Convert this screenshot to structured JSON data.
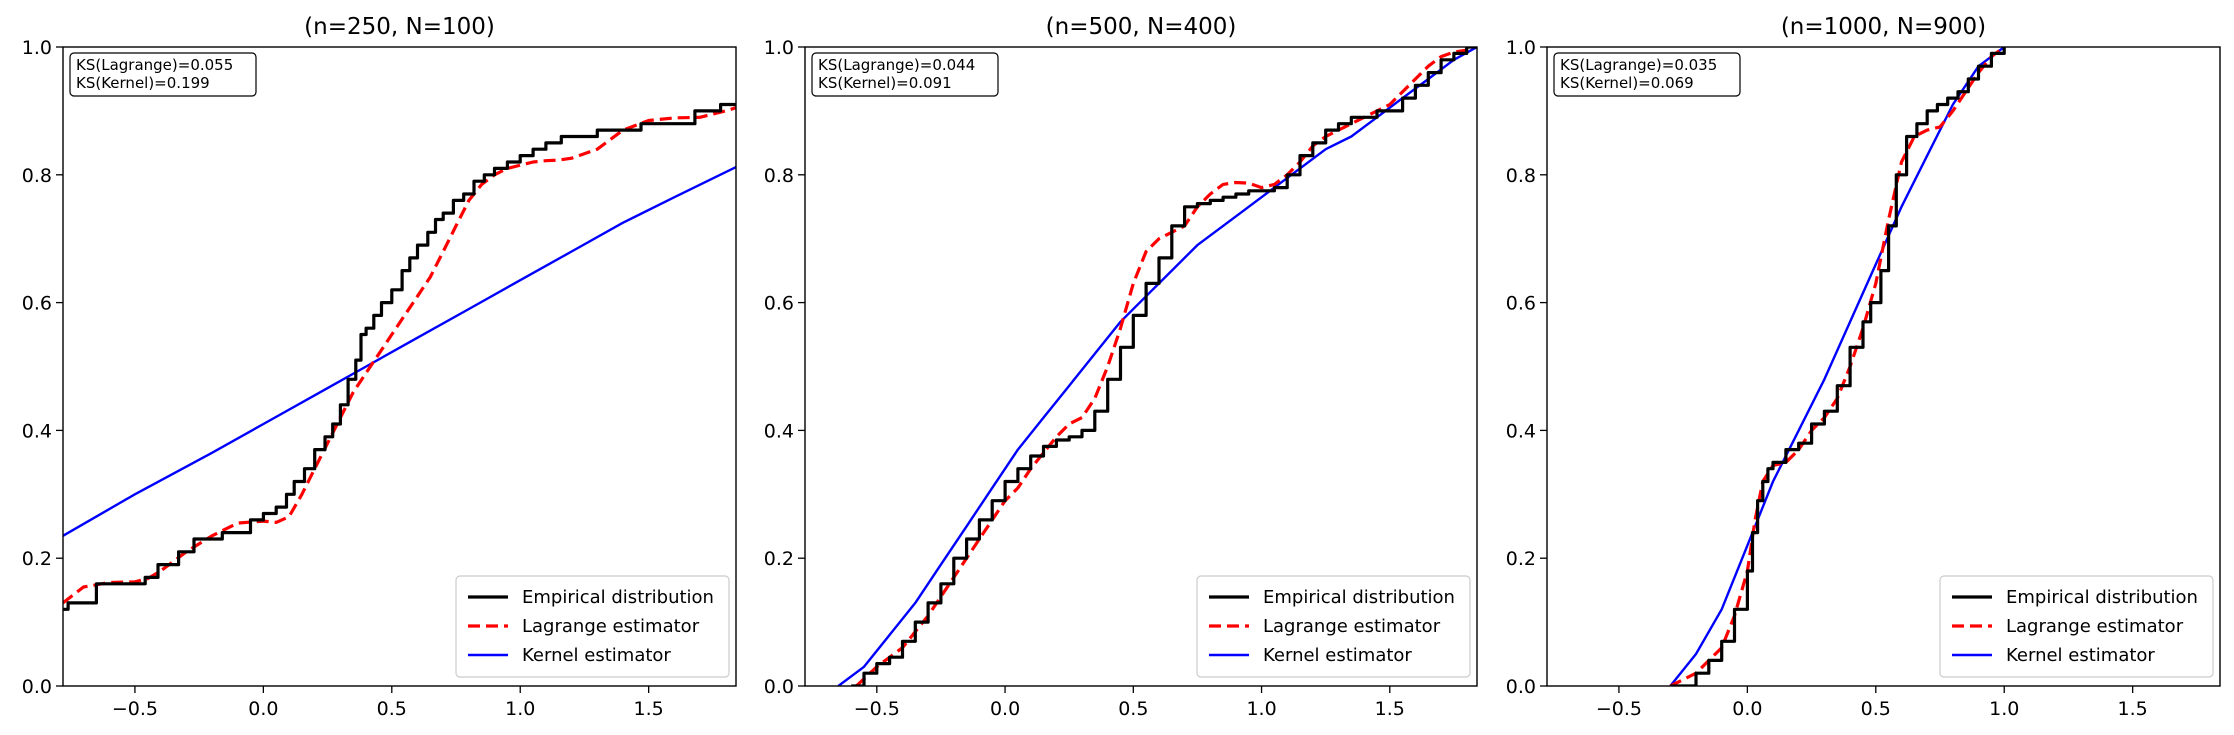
{
  "chart_data": [
    {
      "type": "line",
      "title": "(n=250, N=100)",
      "xlabel": "",
      "ylabel": "",
      "xlim": [
        -0.78,
        1.84
      ],
      "ylim": [
        0.0,
        1.0
      ],
      "xticks": [
        -0.5,
        0.0,
        0.5,
        1.0,
        1.5
      ],
      "xtick_labels": [
        "−0.5",
        "0.0",
        "0.5",
        "1.0",
        "1.5"
      ],
      "yticks": [
        0.0,
        0.2,
        0.4,
        0.6,
        0.8,
        1.0
      ],
      "ytick_labels": [
        "0.0",
        "0.2",
        "0.4",
        "0.6",
        "0.8",
        "1.0"
      ],
      "annotation": [
        "KS(Lagrange)=0.055",
        "KS(Kernel)=0.199"
      ],
      "legend_position": "lower-right",
      "series": [
        {
          "name": "Empirical distribution",
          "color": "#000000",
          "style": "step",
          "x": [
            -0.78,
            -0.76,
            -0.65,
            -0.54,
            -0.46,
            -0.41,
            -0.33,
            -0.27,
            -0.16,
            -0.05,
            0.0,
            0.05,
            0.09,
            0.12,
            0.16,
            0.2,
            0.24,
            0.27,
            0.3,
            0.33,
            0.36,
            0.38,
            0.4,
            0.43,
            0.46,
            0.5,
            0.54,
            0.57,
            0.6,
            0.64,
            0.67,
            0.7,
            0.74,
            0.78,
            0.82,
            0.86,
            0.9,
            0.95,
            1.0,
            1.05,
            1.1,
            1.16,
            1.22,
            1.3,
            1.38,
            1.47,
            1.58,
            1.68,
            1.78,
            1.84
          ],
          "y": [
            0.12,
            0.13,
            0.16,
            0.16,
            0.17,
            0.19,
            0.21,
            0.23,
            0.24,
            0.26,
            0.27,
            0.28,
            0.3,
            0.32,
            0.34,
            0.37,
            0.39,
            0.41,
            0.44,
            0.48,
            0.51,
            0.55,
            0.56,
            0.58,
            0.6,
            0.62,
            0.65,
            0.67,
            0.69,
            0.71,
            0.73,
            0.74,
            0.76,
            0.77,
            0.79,
            0.8,
            0.81,
            0.82,
            0.83,
            0.84,
            0.85,
            0.86,
            0.86,
            0.87,
            0.87,
            0.88,
            0.88,
            0.9,
            0.91,
            0.91
          ]
        },
        {
          "name": "Lagrange estimator",
          "color": "#ff0000",
          "style": "dashed",
          "x": [
            -0.78,
            -0.7,
            -0.6,
            -0.5,
            -0.45,
            -0.4,
            -0.3,
            -0.2,
            -0.1,
            0.0,
            0.05,
            0.1,
            0.15,
            0.2,
            0.25,
            0.3,
            0.35,
            0.4,
            0.45,
            0.5,
            0.55,
            0.6,
            0.65,
            0.7,
            0.75,
            0.8,
            0.85,
            0.9,
            0.95,
            1.0,
            1.05,
            1.1,
            1.15,
            1.2,
            1.3,
            1.4,
            1.5,
            1.6,
            1.7,
            1.8,
            1.84
          ],
          "y": [
            0.13,
            0.155,
            0.162,
            0.163,
            0.168,
            0.18,
            0.21,
            0.235,
            0.255,
            0.258,
            0.256,
            0.265,
            0.3,
            0.34,
            0.38,
            0.42,
            0.46,
            0.49,
            0.52,
            0.55,
            0.58,
            0.61,
            0.64,
            0.68,
            0.72,
            0.76,
            0.785,
            0.8,
            0.81,
            0.815,
            0.82,
            0.822,
            0.823,
            0.826,
            0.84,
            0.87,
            0.885,
            0.889,
            0.89,
            0.9,
            0.905
          ]
        },
        {
          "name": "Kernel estimator",
          "color": "#0000ff",
          "style": "solid",
          "x": [
            -0.78,
            -0.5,
            -0.2,
            0.0,
            0.2,
            0.4,
            0.6,
            0.8,
            1.0,
            1.2,
            1.4,
            1.6,
            1.84
          ],
          "y": [
            0.235,
            0.3,
            0.365,
            0.41,
            0.455,
            0.5,
            0.545,
            0.59,
            0.635,
            0.68,
            0.725,
            0.765,
            0.812
          ]
        }
      ]
    },
    {
      "type": "line",
      "title": "(n=500, N=400)",
      "xlabel": "",
      "ylabel": "",
      "xlim": [
        -0.78,
        1.84
      ],
      "ylim": [
        0.0,
        1.0
      ],
      "xticks": [
        -0.5,
        0.0,
        0.5,
        1.0,
        1.5
      ],
      "xtick_labels": [
        "−0.5",
        "0.0",
        "0.5",
        "1.0",
        "1.5"
      ],
      "yticks": [
        0.0,
        0.2,
        0.4,
        0.6,
        0.8,
        1.0
      ],
      "ytick_labels": [
        "0.0",
        "0.2",
        "0.4",
        "0.6",
        "0.8",
        "1.0"
      ],
      "annotation": [
        "KS(Lagrange)=0.044",
        "KS(Kernel)=0.091"
      ],
      "legend_position": "lower-right",
      "series": [
        {
          "name": "Empirical distribution",
          "color": "#000000",
          "style": "step",
          "x": [
            -0.6,
            -0.55,
            -0.5,
            -0.45,
            -0.4,
            -0.35,
            -0.3,
            -0.25,
            -0.2,
            -0.15,
            -0.1,
            -0.05,
            0.0,
            0.05,
            0.1,
            0.15,
            0.2,
            0.25,
            0.3,
            0.35,
            0.4,
            0.45,
            0.5,
            0.55,
            0.6,
            0.65,
            0.7,
            0.75,
            0.8,
            0.85,
            0.9,
            0.95,
            1.0,
            1.05,
            1.1,
            1.15,
            1.2,
            1.25,
            1.3,
            1.35,
            1.4,
            1.45,
            1.5,
            1.55,
            1.6,
            1.65,
            1.7,
            1.75,
            1.8,
            1.84
          ],
          "y": [
            0.0,
            0.02,
            0.035,
            0.045,
            0.07,
            0.1,
            0.13,
            0.16,
            0.2,
            0.23,
            0.26,
            0.29,
            0.32,
            0.34,
            0.36,
            0.375,
            0.385,
            0.39,
            0.4,
            0.43,
            0.48,
            0.53,
            0.58,
            0.63,
            0.67,
            0.72,
            0.75,
            0.755,
            0.76,
            0.765,
            0.77,
            0.775,
            0.775,
            0.78,
            0.8,
            0.83,
            0.85,
            0.87,
            0.88,
            0.89,
            0.89,
            0.9,
            0.9,
            0.92,
            0.94,
            0.96,
            0.98,
            0.99,
            1.0,
            1.0
          ]
        },
        {
          "name": "Lagrange estimator",
          "color": "#ff0000",
          "style": "dashed",
          "x": [
            -0.58,
            -0.5,
            -0.4,
            -0.3,
            -0.2,
            -0.1,
            0.0,
            0.05,
            0.1,
            0.2,
            0.25,
            0.3,
            0.35,
            0.4,
            0.45,
            0.5,
            0.55,
            0.6,
            0.65,
            0.7,
            0.75,
            0.8,
            0.85,
            0.9,
            0.95,
            1.0,
            1.05,
            1.1,
            1.15,
            1.2,
            1.25,
            1.3,
            1.35,
            1.4,
            1.45,
            1.5,
            1.55,
            1.6,
            1.65,
            1.7,
            1.75,
            1.8
          ],
          "y": [
            0.0,
            0.03,
            0.06,
            0.11,
            0.17,
            0.23,
            0.29,
            0.31,
            0.34,
            0.39,
            0.41,
            0.42,
            0.45,
            0.5,
            0.56,
            0.63,
            0.68,
            0.7,
            0.71,
            0.72,
            0.75,
            0.77,
            0.785,
            0.788,
            0.787,
            0.78,
            0.785,
            0.8,
            0.82,
            0.845,
            0.86,
            0.87,
            0.88,
            0.89,
            0.9,
            0.91,
            0.93,
            0.95,
            0.97,
            0.985,
            0.992,
            0.995
          ]
        },
        {
          "name": "Kernel estimator",
          "color": "#0000ff",
          "style": "solid",
          "x": [
            -0.65,
            -0.55,
            -0.45,
            -0.35,
            -0.25,
            -0.15,
            -0.05,
            0.05,
            0.15,
            0.25,
            0.35,
            0.45,
            0.55,
            0.65,
            0.75,
            0.85,
            0.95,
            1.05,
            1.15,
            1.25,
            1.35,
            1.45,
            1.55,
            1.65,
            1.75,
            1.84
          ],
          "y": [
            0.0,
            0.03,
            0.08,
            0.13,
            0.19,
            0.25,
            0.31,
            0.37,
            0.42,
            0.47,
            0.52,
            0.57,
            0.61,
            0.65,
            0.69,
            0.72,
            0.75,
            0.78,
            0.81,
            0.84,
            0.86,
            0.89,
            0.92,
            0.95,
            0.98,
            1.0
          ]
        }
      ]
    },
    {
      "type": "line",
      "title": "(n=1000, N=900)",
      "xlabel": "",
      "ylabel": "",
      "xlim": [
        -0.78,
        1.84
      ],
      "ylim": [
        0.0,
        1.0
      ],
      "xticks": [
        -0.5,
        0.0,
        0.5,
        1.0,
        1.5
      ],
      "xtick_labels": [
        "−0.5",
        "0.0",
        "0.5",
        "1.0",
        "1.5"
      ],
      "yticks": [
        0.0,
        0.2,
        0.4,
        0.6,
        0.8,
        1.0
      ],
      "ytick_labels": [
        "0.0",
        "0.2",
        "0.4",
        "0.6",
        "0.8",
        "1.0"
      ],
      "annotation": [
        "KS(Lagrange)=0.035",
        "KS(Kernel)=0.069"
      ],
      "legend_position": "lower-right",
      "series": [
        {
          "name": "Empirical distribution",
          "color": "#000000",
          "style": "step",
          "x": [
            -0.3,
            -0.2,
            -0.15,
            -0.1,
            -0.05,
            0.0,
            0.02,
            0.04,
            0.06,
            0.08,
            0.1,
            0.15,
            0.2,
            0.25,
            0.3,
            0.35,
            0.4,
            0.45,
            0.48,
            0.52,
            0.55,
            0.58,
            0.62,
            0.66,
            0.7,
            0.74,
            0.78,
            0.82,
            0.86,
            0.9,
            0.95,
            1.0
          ],
          "y": [
            0.0,
            0.02,
            0.04,
            0.07,
            0.12,
            0.18,
            0.24,
            0.29,
            0.32,
            0.34,
            0.35,
            0.37,
            0.38,
            0.41,
            0.43,
            0.47,
            0.53,
            0.57,
            0.6,
            0.65,
            0.72,
            0.8,
            0.86,
            0.88,
            0.9,
            0.91,
            0.92,
            0.93,
            0.95,
            0.97,
            0.99,
            1.0
          ]
        },
        {
          "name": "Lagrange estimator",
          "color": "#ff0000",
          "style": "dashed",
          "x": [
            -0.3,
            -0.2,
            -0.1,
            -0.05,
            0.0,
            0.03,
            0.06,
            0.1,
            0.15,
            0.2,
            0.25,
            0.3,
            0.35,
            0.4,
            0.45,
            0.5,
            0.55,
            0.6,
            0.65,
            0.7,
            0.75,
            0.8,
            0.85,
            0.9,
            0.95,
            1.0
          ],
          "y": [
            0.0,
            0.02,
            0.06,
            0.11,
            0.18,
            0.26,
            0.32,
            0.345,
            0.35,
            0.37,
            0.4,
            0.42,
            0.45,
            0.5,
            0.56,
            0.63,
            0.73,
            0.82,
            0.86,
            0.87,
            0.875,
            0.9,
            0.93,
            0.96,
            0.985,
            1.0
          ]
        },
        {
          "name": "Kernel estimator",
          "color": "#0000ff",
          "style": "solid",
          "x": [
            -0.3,
            -0.2,
            -0.1,
            0.0,
            0.1,
            0.2,
            0.3,
            0.4,
            0.5,
            0.6,
            0.7,
            0.8,
            0.9,
            1.0
          ],
          "y": [
            0.0,
            0.05,
            0.12,
            0.22,
            0.32,
            0.4,
            0.48,
            0.57,
            0.66,
            0.75,
            0.83,
            0.91,
            0.97,
            1.0
          ]
        }
      ]
    }
  ]
}
